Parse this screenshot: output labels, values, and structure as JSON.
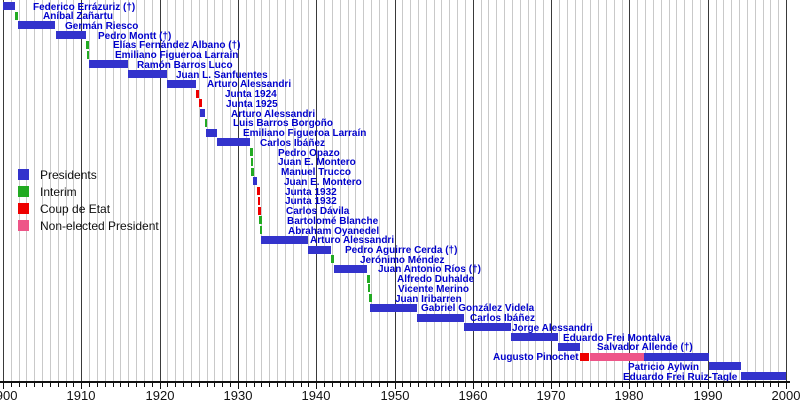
{
  "colors": {
    "president": "#3333cc",
    "interim": "#22aa22",
    "coup": "#ee0000",
    "non_elected": "#ee5588",
    "label_text": "#0000cc",
    "grid_minor": "#c9c9c9",
    "grid_major": "#3a3a3a",
    "axis_text": "#111111"
  },
  "legend": {
    "items": [
      {
        "key": "president",
        "label": "Presidents"
      },
      {
        "key": "interim",
        "label": "Interim"
      },
      {
        "key": "coup",
        "label": "Coup de Etat"
      },
      {
        "key": "non_elected",
        "label": "Non-elected President"
      }
    ]
  },
  "axis": {
    "start": 1900,
    "end": 2000,
    "minor_step": 1,
    "major_step": 10,
    "labels": [
      "1900",
      "1910",
      "1920",
      "1930",
      "1940",
      "1950",
      "1960",
      "1970",
      "1980",
      "1990",
      "2000"
    ]
  },
  "chart_data": {
    "type": "timeline",
    "x_range": [
      1900,
      2000
    ],
    "rows": [
      {
        "label": "Federico Errázuriz (†)",
        "label_x": 33,
        "segments": [
          {
            "type": "president",
            "from": 1900.0,
            "to": 1901.55
          }
        ]
      },
      {
        "label": "Aníbal Zañartu",
        "label_x": 43,
        "segments": [
          {
            "type": "interim",
            "from": 1901.55,
            "to": 1901.95
          }
        ]
      },
      {
        "label": "Germán Riesco",
        "label_x": 65,
        "segments": [
          {
            "type": "president",
            "from": 1901.95,
            "to": 1906.7
          }
        ]
      },
      {
        "label": "Pedro Montt (†)",
        "label_x": 98,
        "segments": [
          {
            "type": "president",
            "from": 1906.7,
            "to": 1910.6
          }
        ]
      },
      {
        "label": "Elías Fernández Albano (†)",
        "label_x": 113,
        "segments": [
          {
            "type": "interim",
            "from": 1910.6,
            "to": 1910.7
          }
        ]
      },
      {
        "label": "Emiliano Figueroa Larraín",
        "label_x": 115,
        "segments": [
          {
            "type": "interim",
            "from": 1910.7,
            "to": 1910.95
          }
        ]
      },
      {
        "label": "Ramón Barros Luco",
        "label_x": 137,
        "segments": [
          {
            "type": "president",
            "from": 1910.95,
            "to": 1915.95
          }
        ]
      },
      {
        "label": "Juan L. Sanfuentes",
        "label_x": 176,
        "segments": [
          {
            "type": "president",
            "from": 1915.95,
            "to": 1920.95
          }
        ]
      },
      {
        "label": "Arturo Alessandri",
        "label_x": 207,
        "segments": [
          {
            "type": "president",
            "from": 1920.95,
            "to": 1924.7
          }
        ]
      },
      {
        "label": "Junta 1924",
        "label_x": 225,
        "segments": [
          {
            "type": "coup",
            "from": 1924.7,
            "to": 1925.05
          }
        ]
      },
      {
        "label": "Junta 1925",
        "label_x": 226,
        "segments": [
          {
            "type": "coup",
            "from": 1925.05,
            "to": 1925.2
          }
        ]
      },
      {
        "label": "Arturo Alessandri",
        "label_x": 231,
        "segments": [
          {
            "type": "president",
            "from": 1925.2,
            "to": 1925.75
          }
        ]
      },
      {
        "label": "Luis Barros Borgoño",
        "label_x": 233,
        "segments": [
          {
            "type": "interim",
            "from": 1925.75,
            "to": 1925.95
          }
        ]
      },
      {
        "label": "Emiliano Figueroa Larraín",
        "label_x": 243,
        "segments": [
          {
            "type": "president",
            "from": 1925.95,
            "to": 1927.35
          }
        ]
      },
      {
        "label": "Carlos Ibáñez",
        "label_x": 260,
        "segments": [
          {
            "type": "president",
            "from": 1927.35,
            "to": 1931.55
          }
        ]
      },
      {
        "label": "Pedro Opazo",
        "label_x": 278,
        "segments": [
          {
            "type": "interim",
            "from": 1931.55,
            "to": 1931.62
          }
        ]
      },
      {
        "label": "Juan E. Montero",
        "label_x": 278,
        "segments": [
          {
            "type": "interim",
            "from": 1931.62,
            "to": 1931.72
          }
        ]
      },
      {
        "label": "Manuel Trucco",
        "label_x": 281,
        "segments": [
          {
            "type": "interim",
            "from": 1931.72,
            "to": 1931.92
          }
        ]
      },
      {
        "label": "Juan E. Montero",
        "label_x": 284,
        "segments": [
          {
            "type": "president",
            "from": 1931.92,
            "to": 1932.45
          }
        ]
      },
      {
        "label": "Junta 1932",
        "label_x": 285,
        "segments": [
          {
            "type": "coup",
            "from": 1932.45,
            "to": 1932.52
          }
        ]
      },
      {
        "label": "Junta 1932",
        "label_x": 285,
        "segments": [
          {
            "type": "coup",
            "from": 1932.52,
            "to": 1932.58
          }
        ]
      },
      {
        "label": "Carlos Dávila",
        "label_x": 286,
        "segments": [
          {
            "type": "coup",
            "from": 1932.58,
            "to": 1932.7
          }
        ]
      },
      {
        "label": "Bartolomé Blanche",
        "label_x": 287,
        "segments": [
          {
            "type": "interim",
            "from": 1932.7,
            "to": 1932.78
          }
        ]
      },
      {
        "label": "Abraham Oyanedel",
        "label_x": 288,
        "segments": [
          {
            "type": "interim",
            "from": 1932.78,
            "to": 1932.95
          }
        ]
      },
      {
        "label": "Arturo Alessandri",
        "label_x": 310,
        "segments": [
          {
            "type": "president",
            "from": 1932.95,
            "to": 1938.95
          }
        ]
      },
      {
        "label": "Pedro Aguirre Cerda (†)",
        "label_x": 345,
        "segments": [
          {
            "type": "president",
            "from": 1938.95,
            "to": 1941.85
          }
        ]
      },
      {
        "label": "Jerónimo Méndez",
        "label_x": 360,
        "segments": [
          {
            "type": "interim",
            "from": 1941.85,
            "to": 1942.25
          }
        ]
      },
      {
        "label": "Juan Antonio Ríos (†)",
        "label_x": 378,
        "segments": [
          {
            "type": "president",
            "from": 1942.25,
            "to": 1946.5
          }
        ]
      },
      {
        "label": "Alfredo Duhalde",
        "label_x": 397,
        "segments": [
          {
            "type": "interim",
            "from": 1946.5,
            "to": 1946.6
          }
        ]
      },
      {
        "label": "Vicente Merino",
        "label_x": 398,
        "segments": [
          {
            "type": "interim",
            "from": 1946.6,
            "to": 1946.75
          }
        ]
      },
      {
        "label": "Juan Iribarren",
        "label_x": 395,
        "segments": [
          {
            "type": "interim",
            "from": 1946.75,
            "to": 1946.85
          }
        ]
      },
      {
        "label": "Gabriel González Videla",
        "label_x": 421,
        "segments": [
          {
            "type": "president",
            "from": 1946.85,
            "to": 1952.85
          }
        ]
      },
      {
        "label": "Carlos Ibáñez",
        "label_x": 470,
        "segments": [
          {
            "type": "president",
            "from": 1952.85,
            "to": 1958.85
          }
        ]
      },
      {
        "label": "Jorge Alessandri",
        "label_x": 512,
        "segments": [
          {
            "type": "president",
            "from": 1958.85,
            "to": 1964.85
          }
        ]
      },
      {
        "label": "Eduardo Frei Montalva",
        "label_x": 563,
        "segments": [
          {
            "type": "president",
            "from": 1964.85,
            "to": 1970.85
          }
        ]
      },
      {
        "label": "Salvador Allende (†)",
        "label_x": 597,
        "segments": [
          {
            "type": "president",
            "from": 1970.85,
            "to": 1973.7
          }
        ]
      },
      {
        "label": "Augusto Pinochet",
        "label_x": 493,
        "segments": [
          {
            "type": "coup",
            "from": 1973.7,
            "to": 1974.9
          },
          {
            "type": "non_elected",
            "from": 1974.9,
            "to": 1981.8
          },
          {
            "type": "president",
            "from": 1981.8,
            "to": 1990.2
          }
        ]
      },
      {
        "label": "Patricio Aylwin",
        "label_x": 628,
        "segments": [
          {
            "type": "president",
            "from": 1990.2,
            "to": 1994.2
          }
        ]
      },
      {
        "label": "Eduardo Frei Ruiz-Tagle",
        "label_x": 623,
        "segments": [
          {
            "type": "president",
            "from": 1994.2,
            "to": 2000.0
          }
        ]
      }
    ]
  }
}
